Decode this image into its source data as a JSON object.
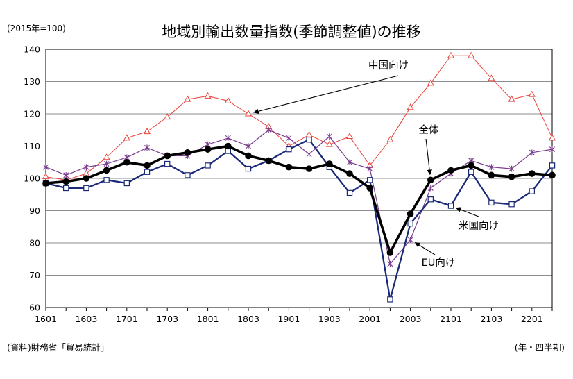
{
  "chart_data": {
    "type": "line",
    "title": "地域別輸出数量指数(季節調整値)の推移",
    "unit_label": "(2015年=100)",
    "source": "(資料)財務省「貿易統計」",
    "x_unit_label": "(年・四半期)",
    "x": [
      "1601",
      "1602",
      "1603",
      "1604",
      "1701",
      "1702",
      "1703",
      "1704",
      "1801",
      "1802",
      "1803",
      "1804",
      "1901",
      "1902",
      "1903",
      "1904",
      "2001",
      "2002",
      "2003",
      "2004",
      "2101",
      "2102",
      "2103",
      "2104",
      "2201",
      "2202"
    ],
    "x_tick_labels": [
      "1601",
      "1603",
      "1701",
      "1703",
      "1801",
      "1803",
      "1901",
      "1903",
      "2001",
      "2003",
      "2101",
      "2103",
      "2201"
    ],
    "ylim": [
      60,
      140
    ],
    "y_ticks": [
      60,
      70,
      80,
      90,
      100,
      110,
      120,
      130,
      140
    ],
    "grid": "horizontal",
    "series": [
      {
        "name": "中国向け",
        "color": "#e8423a",
        "marker": "triangle",
        "values": [
          100.5,
          99.5,
          101.5,
          106.5,
          112.5,
          114.5,
          119,
          124.5,
          125.5,
          124,
          120,
          116,
          110,
          113.5,
          110.5,
          113,
          104,
          112,
          122,
          129.5,
          138,
          138,
          131,
          124.5,
          126,
          112.5
        ]
      },
      {
        "name": "EU向け",
        "color": "#7a3b8f",
        "marker": "star",
        "values": [
          103.5,
          101,
          103.5,
          104.5,
          106.5,
          109.5,
          107,
          107,
          110.5,
          112.5,
          110,
          115,
          112.5,
          107.5,
          113,
          105,
          103,
          73.5,
          81,
          97,
          101.5,
          105.5,
          103.5,
          103,
          108,
          109
        ]
      },
      {
        "name": "米国向け",
        "color": "#1a2a78",
        "marker": "square",
        "values": [
          98.5,
          97,
          97,
          99.5,
          98.5,
          102,
          104.5,
          101,
          104,
          108.5,
          103,
          105.5,
          109,
          112,
          103.5,
          95.5,
          99.5,
          62.5,
          86,
          93.5,
          91.5,
          102,
          92.5,
          92,
          96,
          104
        ]
      },
      {
        "name": "全体",
        "color": "#000000",
        "marker": "circle",
        "values": [
          98.5,
          99,
          100,
          102.5,
          105,
          104,
          107,
          108,
          109,
          110,
          107,
          105.5,
          103.5,
          103,
          104.5,
          101.5,
          97,
          77,
          89,
          99.5,
          102.5,
          104,
          101,
          100.5,
          101.5,
          101
        ]
      }
    ],
    "annotations": [
      {
        "text": "中国向け",
        "series": "中国向け"
      },
      {
        "text": "全体",
        "series": "全体"
      },
      {
        "text": "米国向け",
        "series": "米国向け"
      },
      {
        "text": "EU向け",
        "series": "EU向け"
      }
    ]
  }
}
